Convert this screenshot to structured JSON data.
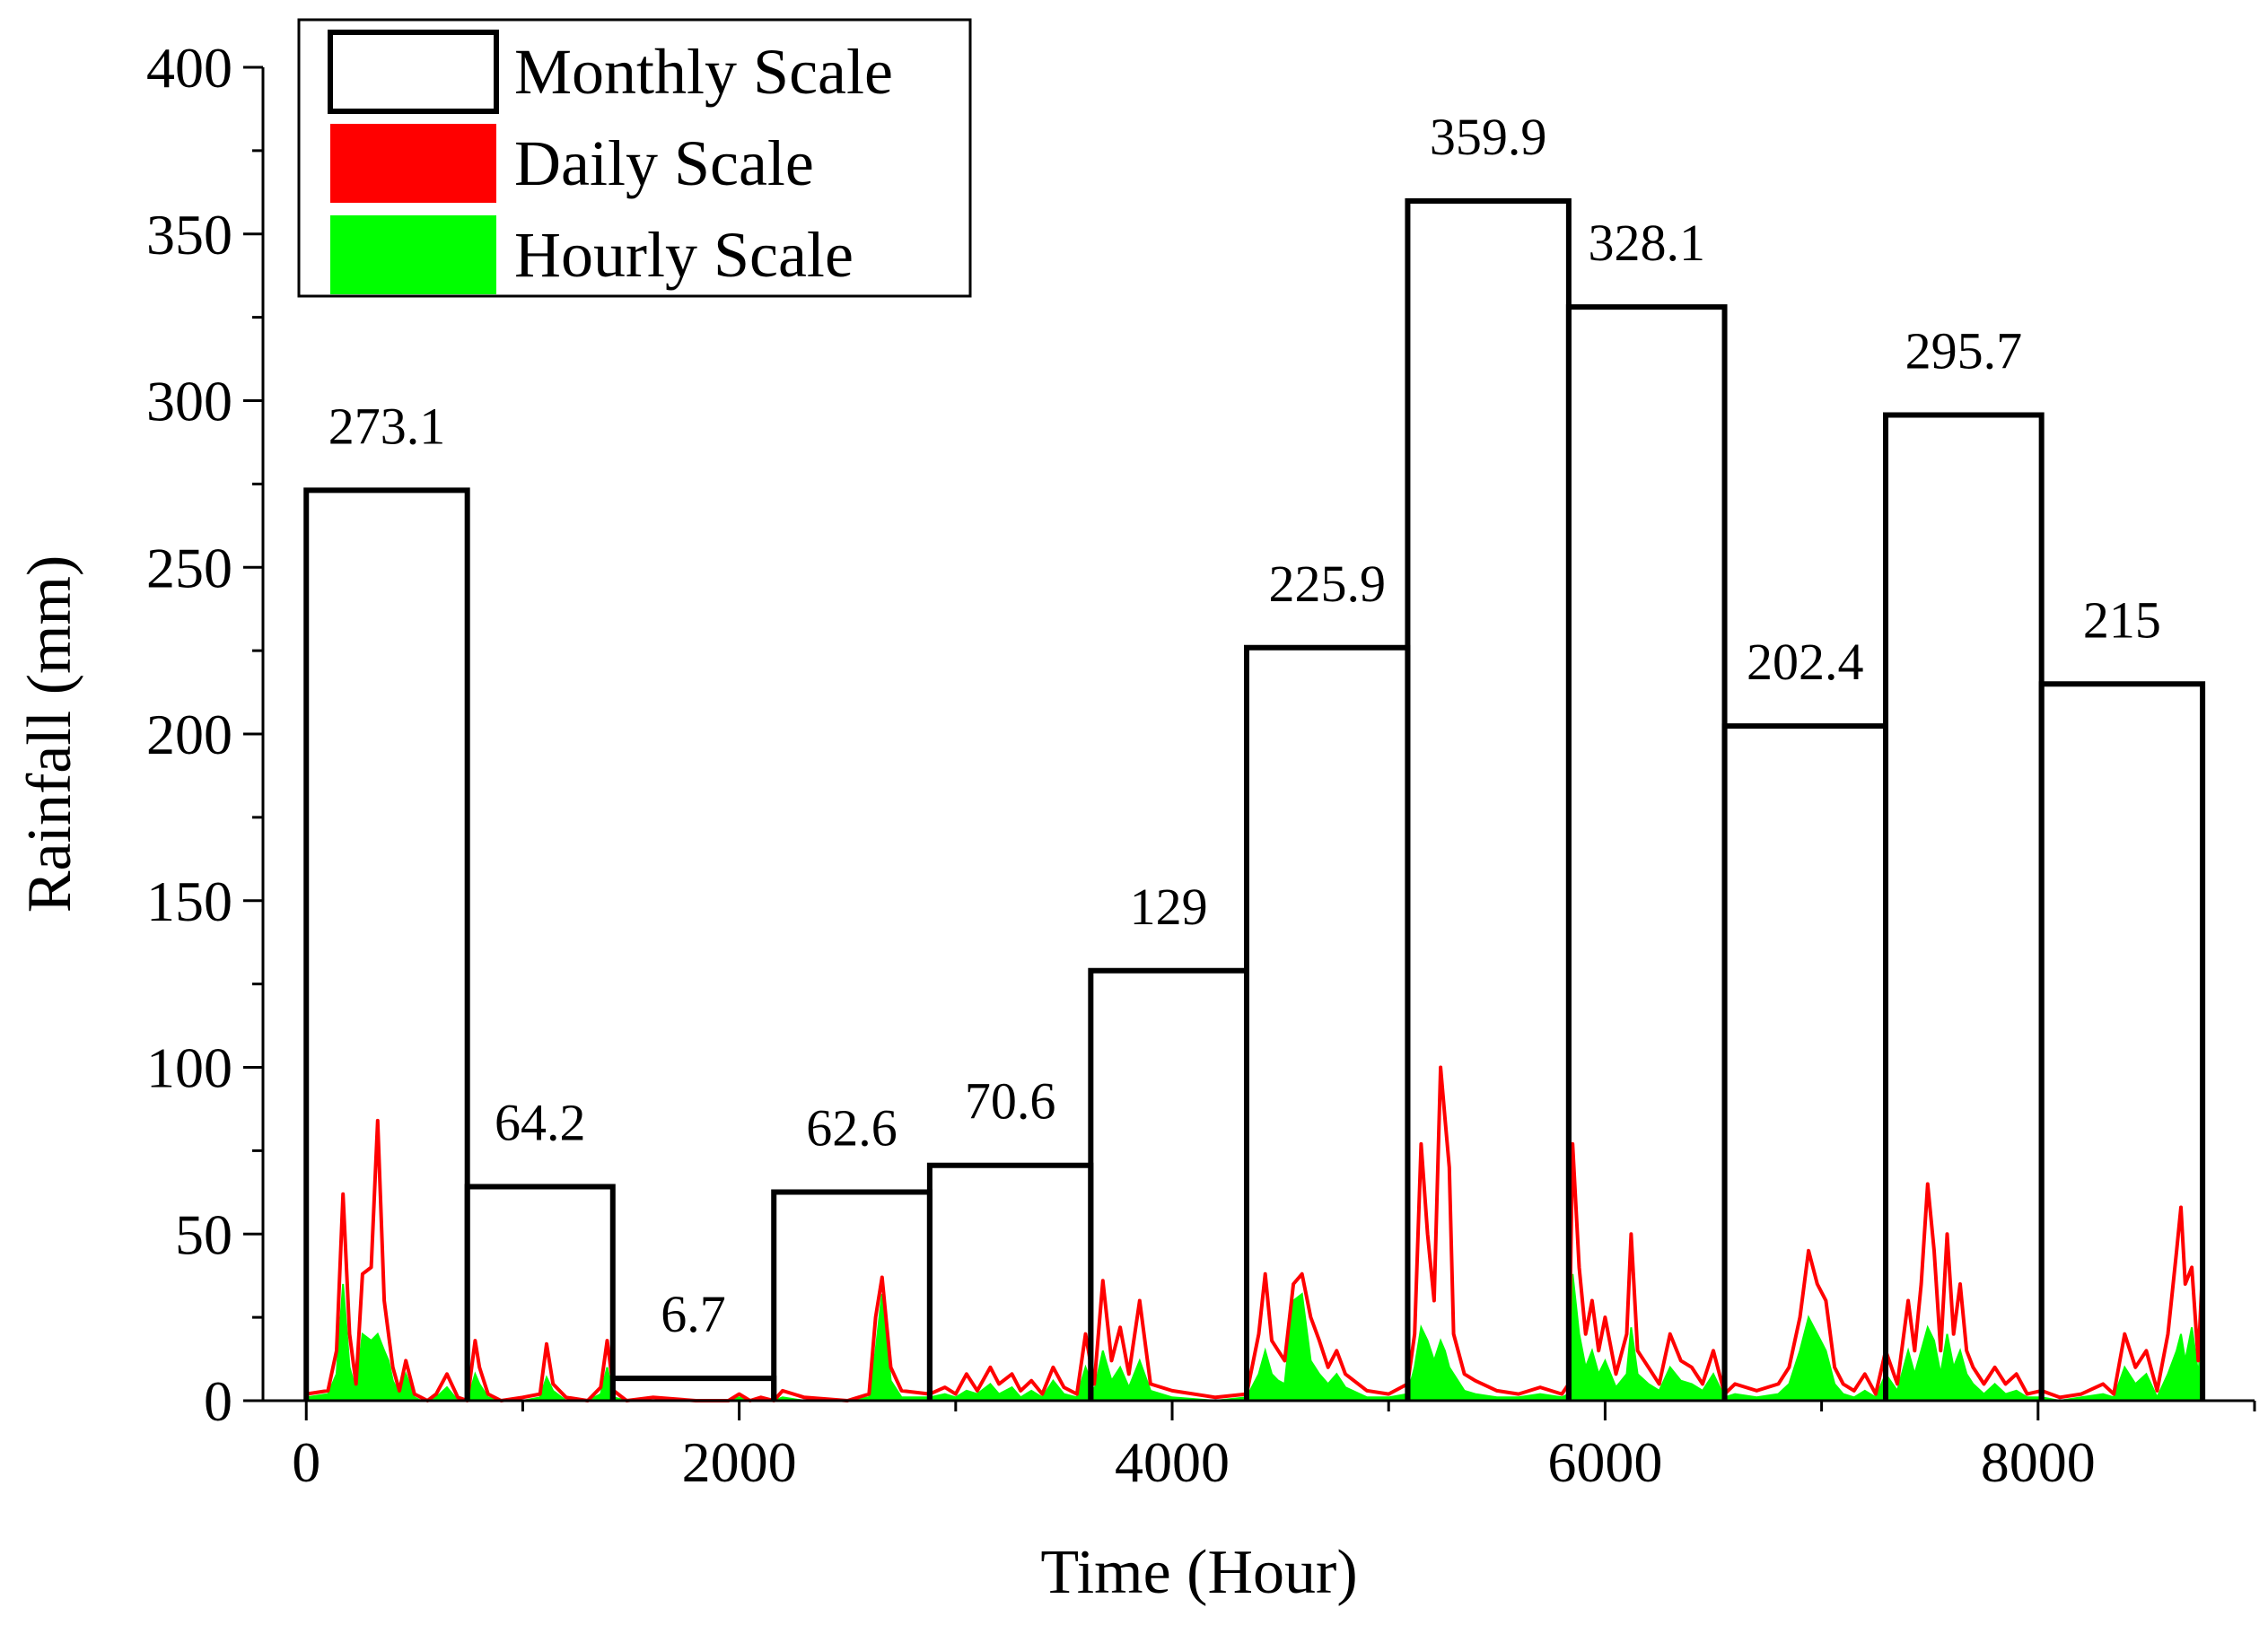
{
  "chart_data": {
    "type": "bar",
    "title": "",
    "xlabel": "Time (Hour)",
    "ylabel": "Rainfall (mm)",
    "xlim": [
      -200,
      9000
    ],
    "ylim": [
      0,
      400
    ],
    "x_ticks": [
      0,
      2000,
      4000,
      6000,
      8000
    ],
    "y_ticks": [
      0,
      50,
      100,
      150,
      200,
      250,
      300,
      350,
      400
    ],
    "grid": false,
    "legend_position": "top-left",
    "series": [
      {
        "name": "Monthly Scale",
        "kind": "step-bars",
        "color": "#000000",
        "bins": [
          {
            "start": 0,
            "end": 744,
            "value": 273.1,
            "label": "273.1"
          },
          {
            "start": 744,
            "end": 1416,
            "value": 64.2,
            "label": "64.2"
          },
          {
            "start": 1416,
            "end": 2160,
            "value": 6.7,
            "label": "6.7"
          },
          {
            "start": 2160,
            "end": 2880,
            "value": 62.6,
            "label": "62.6"
          },
          {
            "start": 2880,
            "end": 3624,
            "value": 70.6,
            "label": "70.6"
          },
          {
            "start": 3624,
            "end": 4344,
            "value": 129,
            "label": "129"
          },
          {
            "start": 4344,
            "end": 5088,
            "value": 225.9,
            "label": "225.9"
          },
          {
            "start": 5088,
            "end": 5832,
            "value": 359.9,
            "label": "359.9"
          },
          {
            "start": 5832,
            "end": 6552,
            "value": 328.1,
            "label": "328.1"
          },
          {
            "start": 6552,
            "end": 7296,
            "value": 202.4,
            "label": "202.4"
          },
          {
            "start": 7296,
            "end": 8016,
            "value": 295.7,
            "label": "295.7"
          },
          {
            "start": 8016,
            "end": 8760,
            "value": 215,
            "label": "215"
          }
        ]
      },
      {
        "name": "Daily Scale",
        "kind": "line",
        "color": "#ff0000",
        "x": [
          0,
          100,
          140,
          170,
          200,
          230,
          260,
          300,
          330,
          360,
          380,
          400,
          430,
          460,
          500,
          530,
          560,
          600,
          650,
          700,
          744,
          780,
          800,
          840,
          900,
          1000,
          1080,
          1110,
          1140,
          1200,
          1300,
          1360,
          1390,
          1420,
          1480,
          1600,
          1800,
          1950,
          2000,
          2050,
          2100,
          2160,
          2200,
          2300,
          2500,
          2600,
          2630,
          2660,
          2700,
          2750,
          2880,
          2950,
          3000,
          3050,
          3100,
          3160,
          3200,
          3260,
          3300,
          3350,
          3400,
          3450,
          3500,
          3560,
          3600,
          3640,
          3680,
          3720,
          3760,
          3800,
          3850,
          3900,
          4000,
          4200,
          4344,
          4400,
          4430,
          4460,
          4490,
          4520,
          4560,
          4600,
          4640,
          4680,
          4720,
          4760,
          4800,
          4900,
          5000,
          5088,
          5120,
          5150,
          5180,
          5210,
          5240,
          5260,
          5280,
          5300,
          5350,
          5400,
          5500,
          5600,
          5700,
          5800,
          5832,
          5850,
          5880,
          5910,
          5940,
          5970,
          6000,
          6050,
          6100,
          6120,
          6150,
          6200,
          6250,
          6300,
          6350,
          6400,
          6450,
          6500,
          6552,
          6600,
          6700,
          6800,
          6850,
          6900,
          6940,
          6980,
          7020,
          7060,
          7100,
          7150,
          7200,
          7250,
          7296,
          7350,
          7400,
          7430,
          7460,
          7490,
          7520,
          7550,
          7580,
          7610,
          7640,
          7670,
          7700,
          7750,
          7800,
          7850,
          7900,
          7950,
          8016,
          8100,
          8200,
          8300,
          8350,
          8400,
          8450,
          8500,
          8550,
          8600,
          8640,
          8660,
          8680,
          8710,
          8740,
          8760
        ],
        "y": [
          2,
          3,
          15,
          62,
          20,
          5,
          38,
          40,
          84,
          30,
          20,
          10,
          3,
          12,
          2,
          1,
          0,
          2,
          8,
          1,
          0,
          18,
          10,
          2,
          0,
          1,
          2,
          17,
          5,
          1,
          0,
          4,
          18,
          3,
          0,
          1,
          0,
          0,
          2,
          0,
          1,
          0,
          3,
          1,
          0,
          2,
          25,
          37,
          10,
          3,
          2,
          4,
          2,
          8,
          3,
          10,
          5,
          8,
          3,
          6,
          2,
          10,
          4,
          2,
          20,
          5,
          36,
          12,
          22,
          8,
          30,
          5,
          3,
          1,
          2,
          20,
          38,
          18,
          15,
          12,
          35,
          38,
          25,
          18,
          10,
          15,
          8,
          3,
          2,
          5,
          20,
          77,
          50,
          30,
          100,
          85,
          70,
          20,
          8,
          6,
          3,
          2,
          4,
          2,
          5,
          77,
          40,
          20,
          30,
          15,
          25,
          8,
          20,
          50,
          15,
          10,
          5,
          20,
          12,
          10,
          5,
          15,
          2,
          5,
          3,
          5,
          10,
          25,
          45,
          35,
          30,
          10,
          5,
          3,
          8,
          2,
          15,
          5,
          30,
          15,
          35,
          65,
          45,
          15,
          50,
          20,
          35,
          15,
          10,
          5,
          10,
          5,
          8,
          2,
          3,
          1,
          2,
          5,
          2,
          20,
          10,
          15,
          3,
          20,
          45,
          58,
          35,
          40,
          12,
          40
        ]
      },
      {
        "name": "Hourly Scale",
        "kind": "filled-line",
        "color": "#00ff00",
        "x": [
          0,
          100,
          140,
          170,
          200,
          230,
          260,
          300,
          330,
          360,
          380,
          400,
          430,
          460,
          500,
          530,
          560,
          600,
          650,
          700,
          744,
          780,
          800,
          840,
          900,
          1000,
          1080,
          1110,
          1140,
          1200,
          1300,
          1360,
          1390,
          1420,
          1480,
          1600,
          1800,
          1950,
          2000,
          2050,
          2100,
          2160,
          2200,
          2300,
          2500,
          2600,
          2630,
          2660,
          2700,
          2750,
          2880,
          2950,
          3000,
          3050,
          3100,
          3160,
          3200,
          3260,
          3300,
          3350,
          3400,
          3450,
          3500,
          3560,
          3600,
          3640,
          3680,
          3720,
          3760,
          3800,
          3850,
          3900,
          4000,
          4200,
          4344,
          4400,
          4430,
          4460,
          4490,
          4520,
          4560,
          4600,
          4640,
          4680,
          4720,
          4760,
          4800,
          4900,
          5000,
          5088,
          5120,
          5150,
          5180,
          5210,
          5240,
          5260,
          5280,
          5300,
          5350,
          5400,
          5500,
          5600,
          5700,
          5800,
          5832,
          5850,
          5880,
          5910,
          5940,
          5970,
          6000,
          6050,
          6100,
          6120,
          6150,
          6200,
          6250,
          6300,
          6350,
          6400,
          6450,
          6500,
          6552,
          6600,
          6700,
          6800,
          6850,
          6900,
          6940,
          6980,
          7020,
          7060,
          7100,
          7150,
          7200,
          7250,
          7296,
          7350,
          7400,
          7430,
          7460,
          7490,
          7520,
          7550,
          7580,
          7610,
          7640,
          7670,
          7700,
          7750,
          7800,
          7850,
          7900,
          7950,
          8016,
          8100,
          8200,
          8300,
          8350,
          8400,
          8450,
          8500,
          8550,
          8600,
          8640,
          8660,
          8680,
          8710,
          8740,
          8760
        ],
        "y": [
          1,
          2,
          8,
          35,
          10,
          3,
          20,
          18,
          20,
          15,
          12,
          6,
          2,
          8,
          1,
          0,
          0,
          1,
          4,
          0,
          0,
          8,
          5,
          1,
          0,
          0,
          1,
          7,
          3,
          0,
          0,
          2,
          10,
          1,
          0,
          0,
          0,
          0,
          1,
          0,
          0,
          0,
          1,
          0,
          0,
          1,
          15,
          32,
          6,
          1,
          1,
          2,
          1,
          3,
          2,
          5,
          2,
          4,
          1,
          3,
          1,
          6,
          2,
          1,
          10,
          3,
          15,
          6,
          10,
          4,
          12,
          3,
          1,
          0,
          1,
          8,
          15,
          8,
          6,
          5,
          30,
          32,
          12,
          8,
          5,
          8,
          4,
          1,
          1,
          2,
          10,
          22,
          18,
          12,
          18,
          15,
          10,
          8,
          3,
          2,
          1,
          1,
          2,
          1,
          2,
          38,
          20,
          10,
          15,
          8,
          12,
          4,
          8,
          22,
          8,
          5,
          3,
          10,
          6,
          5,
          3,
          8,
          1,
          2,
          1,
          2,
          5,
          15,
          25,
          20,
          15,
          5,
          2,
          1,
          3,
          1,
          8,
          3,
          15,
          8,
          15,
          22,
          18,
          8,
          20,
          10,
          15,
          8,
          5,
          2,
          5,
          2,
          3,
          1,
          1,
          0,
          1,
          2,
          1,
          10,
          5,
          8,
          1,
          8,
          15,
          20,
          12,
          22,
          8,
          22
        ]
      }
    ]
  }
}
